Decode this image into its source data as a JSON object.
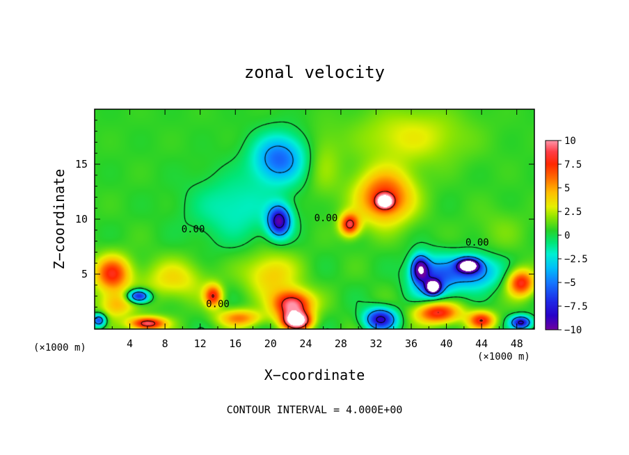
{
  "chart_data": {
    "type": "heatmap",
    "title": "zonal velocity",
    "xlabel": "X−coordinate",
    "ylabel": "Z−coordinate",
    "x_unit": "(×1000 m)",
    "x_unit_right": "(×1000 m)",
    "xlim": [
      0,
      50
    ],
    "ylim": [
      0,
      20
    ],
    "x_ticks": [
      4,
      8,
      12,
      16,
      20,
      24,
      28,
      32,
      36,
      40,
      44,
      48
    ],
    "x_tick_labels": [
      "4",
      "8",
      "12",
      "16",
      "20",
      "24",
      "28",
      "32",
      "36",
      "40",
      "44",
      "48"
    ],
    "y_ticks": [
      5,
      10,
      15
    ],
    "y_tick_labels": [
      "5",
      "10",
      "15"
    ],
    "colorbar": {
      "min": -10,
      "max": 10,
      "tick_values": [
        10,
        7.5,
        5,
        2.5,
        0,
        -2.5,
        -5,
        -7.5,
        -10
      ],
      "tick_labels": [
        "10",
        "7.5",
        "5",
        "2.5",
        "0",
        "−2.5",
        "−5",
        "−7.5",
        "−10"
      ]
    },
    "contour_labels": [
      {
        "text": "0.00",
        "x": 11.2,
        "z": 8.8
      },
      {
        "text": "0.00",
        "x": 14.0,
        "z": 2.0
      },
      {
        "text": "0.00",
        "x": 26.3,
        "z": 9.8
      },
      {
        "text": "0.00",
        "x": 43.5,
        "z": 7.6
      }
    ],
    "contour_interval_text": "CONTOUR INTERVAL = 4.000E+00",
    "features": [
      {
        "x": 21,
        "z": 15.5,
        "value": -6,
        "sx": 3.0,
        "sz": 2.2
      },
      {
        "x": 21,
        "z": 9.8,
        "value": -9.5,
        "sx": 1.3,
        "sz": 1.4
      },
      {
        "x": 5,
        "z": 3.0,
        "value": -9,
        "sx": 1.3,
        "sz": 0.6
      },
      {
        "x": 33,
        "z": 12,
        "value": 7,
        "sx": 3.2,
        "sz": 2.4
      },
      {
        "x": 33,
        "z": 11.6,
        "value": 9,
        "sx": 0.9,
        "sz": 0.6
      },
      {
        "x": 29,
        "z": 9.5,
        "value": 8,
        "sx": 1.1,
        "sz": 1.0
      },
      {
        "x": 26,
        "z": 15,
        "value": 1.5,
        "sx": 2.0,
        "sz": 3.0
      },
      {
        "x": 22.5,
        "z": 2.2,
        "value": 9.5,
        "sx": 2.2,
        "sz": 1.3
      },
      {
        "x": 23,
        "z": 0.7,
        "value": 11,
        "sx": 1.6,
        "sz": 0.8
      },
      {
        "x": 6,
        "z": 0.5,
        "value": 9,
        "sx": 2.0,
        "sz": 0.6
      },
      {
        "x": 2,
        "z": 5,
        "value": 7,
        "sx": 2.0,
        "sz": 1.6
      },
      {
        "x": 2.5,
        "z": 2.2,
        "value": 4,
        "sx": 2.0,
        "sz": 1.2
      },
      {
        "x": 9,
        "z": 4.5,
        "value": 3,
        "sx": 3.5,
        "sz": 1.8
      },
      {
        "x": 13.5,
        "z": 3,
        "value": 7,
        "sx": 1.0,
        "sz": 1.0
      },
      {
        "x": 16.5,
        "z": 1,
        "value": 5,
        "sx": 2.5,
        "sz": 0.8
      },
      {
        "x": 20,
        "z": 5,
        "value": 3.5,
        "sx": 3.0,
        "sz": 2.0
      },
      {
        "x": 32.5,
        "z": 0.9,
        "value": -9,
        "sx": 1.8,
        "sz": 1.0
      },
      {
        "x": 37,
        "z": 5.5,
        "value": -9,
        "sx": 1.0,
        "sz": 1.2
      },
      {
        "x": 38.5,
        "z": 3.8,
        "value": -12,
        "sx": 0.8,
        "sz": 0.6
      },
      {
        "x": 38.5,
        "z": 4.5,
        "value": -6,
        "sx": 2.5,
        "sz": 2.0
      },
      {
        "x": 42.5,
        "z": 5.8,
        "value": -12,
        "sx": 1.2,
        "sz": 0.6
      },
      {
        "x": 43,
        "z": 5.2,
        "value": -6,
        "sx": 3.0,
        "sz": 1.5
      },
      {
        "x": 39,
        "z": 1.5,
        "value": 8,
        "sx": 2.5,
        "sz": 1.0
      },
      {
        "x": 44,
        "z": 0.8,
        "value": 7,
        "sx": 1.5,
        "sz": 0.8
      },
      {
        "x": 48.5,
        "z": 4.2,
        "value": 7.5,
        "sx": 1.5,
        "sz": 1.2
      },
      {
        "x": 48.5,
        "z": 0.6,
        "value": -9,
        "sx": 1.2,
        "sz": 0.6
      },
      {
        "x": 0.5,
        "z": 0.8,
        "value": -7,
        "sx": 0.8,
        "sz": 0.6
      },
      {
        "x": 16,
        "z": 11,
        "value": -2.5,
        "sx": 5.0,
        "sz": 3.0
      },
      {
        "x": 36,
        "z": 17.5,
        "value": 2.5,
        "sx": 6.0,
        "sz": 2.5
      },
      {
        "x": 46,
        "z": 9,
        "value": 0.8,
        "sx": 3.0,
        "sz": 2.0
      }
    ]
  }
}
